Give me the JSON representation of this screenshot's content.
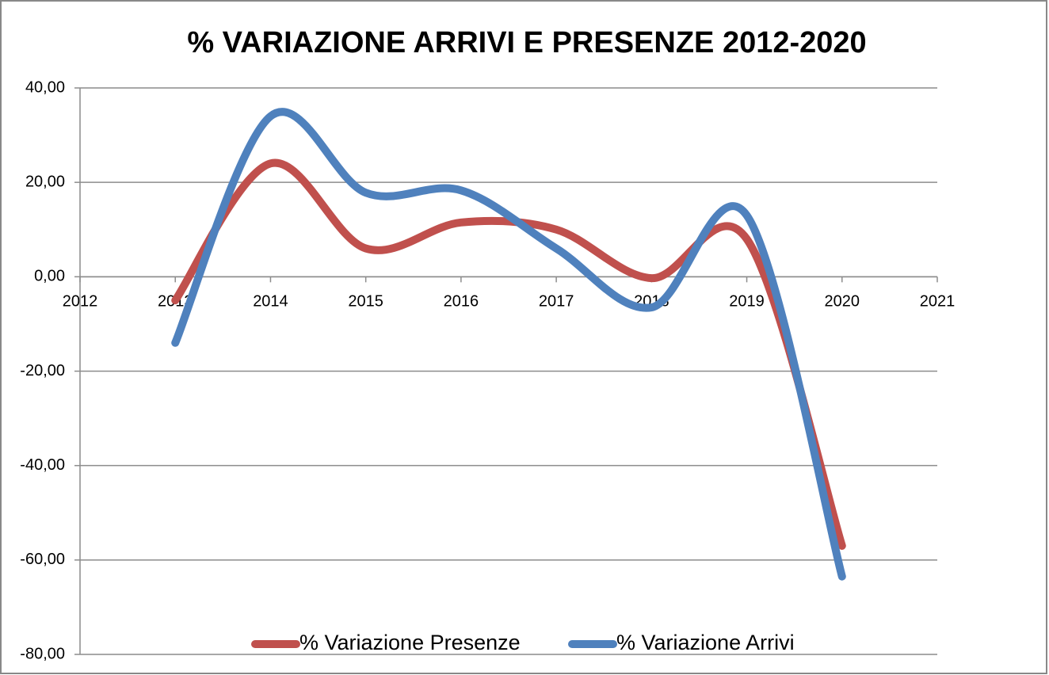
{
  "chart_data": {
    "type": "line",
    "title": "% VARIAZIONE ARRIVI E PRESENZE 2012-2020",
    "x": [
      2013,
      2014,
      2015,
      2016,
      2017,
      2018,
      2019,
      2020
    ],
    "series": [
      {
        "name": "% Variazione Presenze",
        "color": "#c0504d",
        "values": [
          -5,
          24,
          6,
          11.5,
          10,
          -0.3,
          8,
          -57
        ]
      },
      {
        "name": "% Variazione Arrivi",
        "color": "#4f81bd",
        "values": [
          -14,
          34,
          17.8,
          18.3,
          6,
          -6.5,
          13,
          -63.5
        ]
      }
    ],
    "xlim": [
      2012,
      2021
    ],
    "xticks": [
      2012,
      2013,
      2014,
      2015,
      2016,
      2017,
      2018,
      2019,
      2020,
      2021
    ],
    "ylim": [
      -80,
      40
    ],
    "yticks": [
      {
        "value": -80,
        "label": "-80,00"
      },
      {
        "value": -60,
        "label": "-60,00"
      },
      {
        "value": -40,
        "label": "-40,00"
      },
      {
        "value": -20,
        "label": "-20,00"
      },
      {
        "value": 0,
        "label": "0,00"
      },
      {
        "value": 20,
        "label": "20,00"
      },
      {
        "value": 40,
        "label": "40,00"
      }
    ],
    "grid": true,
    "legend": "bottom",
    "smooth": true
  }
}
